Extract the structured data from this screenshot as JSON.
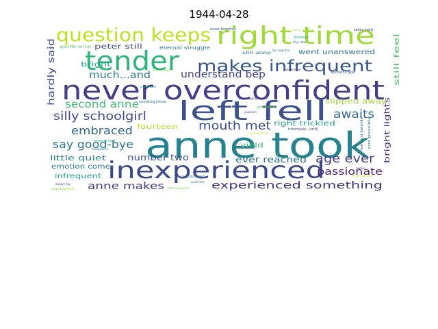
{
  "chart_data": {
    "type": "wordcloud",
    "title": "1944-04-28",
    "words": [
      {
        "text": "anne took",
        "color": "#26828e"
      },
      {
        "text": "never overconfident",
        "color": "#433e85"
      },
      {
        "text": "inexperienced",
        "color": "#3e4989"
      },
      {
        "text": "right time",
        "color": "#a0da39"
      },
      {
        "text": "left fell",
        "color": "#3b528b"
      },
      {
        "text": "tender",
        "color": "#2fb47c"
      },
      {
        "text": "question keeps",
        "color": "#bddf26"
      },
      {
        "text": "makes infrequent",
        "color": "#38588c"
      },
      {
        "text": "silly schoolgirl",
        "color": "#3e4a89"
      },
      {
        "text": "mouth met",
        "color": "#3d4d8a"
      },
      {
        "text": "age ever",
        "color": "#433e85"
      },
      {
        "text": "understand bep",
        "color": "#414487"
      },
      {
        "text": "much...and",
        "color": "#2a788e"
      },
      {
        "text": "awaits",
        "color": "#31688e"
      },
      {
        "text": "say good-bye",
        "color": "#2a778e"
      },
      {
        "text": "embraced",
        "color": "#31688e"
      },
      {
        "text": "experienced something",
        "color": "#46337f"
      },
      {
        "text": "anne makes",
        "color": "#453781"
      },
      {
        "text": "second anne",
        "color": "#40bd72"
      },
      {
        "text": "passionate",
        "color": "#482576"
      },
      {
        "text": "ever reached",
        "color": "#2c718e"
      },
      {
        "text": "hardly said",
        "color": "#3e4a89"
      },
      {
        "text": "bright lights",
        "color": "#472c7a"
      },
      {
        "text": "still feel",
        "color": "#52c569"
      },
      {
        "text": "slipped away",
        "color": "#a2da37"
      },
      {
        "text": "went unanswered",
        "color": "#2a788e"
      },
      {
        "text": "number two",
        "color": "#3b528b"
      },
      {
        "text": "fourteen",
        "color": "#b5de2b"
      },
      {
        "text": "little quiet",
        "color": "#277f8e"
      },
      {
        "text": "infrequent",
        "color": "#1fa088"
      },
      {
        "text": "emotion come",
        "color": "#287c8e"
      },
      {
        "text": "right trickled",
        "color": "#20a386"
      },
      {
        "text": "yield",
        "color": "#3dbc74"
      },
      {
        "text": "bright",
        "color": "#22a884"
      },
      {
        "text": "peter still",
        "color": "#3e4a89"
      },
      {
        "text": "eternal struggle",
        "color": "#2c718e"
      },
      {
        "text": "still anne",
        "color": "#2a788e"
      },
      {
        "text": "gentle anne",
        "color": "#5ec962"
      },
      {
        "text": "never forgotten",
        "color": "#3b528b"
      },
      {
        "text": "every rubbed",
        "color": "#a0da39"
      },
      {
        "text": "taken hold",
        "color": "#3e4a89"
      },
      {
        "text": "discover",
        "color": "#1f9e89"
      },
      {
        "text": "boys later",
        "color": "#31688e"
      },
      {
        "text": "lips together",
        "color": "#26828e"
      },
      {
        "text": "possible answer",
        "color": "#481a6c"
      },
      {
        "text": "wonderful glow",
        "color": "#39568c"
      },
      {
        "text": "feel strange",
        "color": "#7ad151"
      },
      {
        "text": "superseded",
        "color": "#1f9e89"
      },
      {
        "text": "something almost",
        "color": "#2c718e"
      },
      {
        "text": "keeps nagging",
        "color": "#443a83"
      },
      {
        "text": "got pressed",
        "color": "#6ccd5a"
      },
      {
        "text": "intensely...until",
        "color": "#3f4788"
      },
      {
        "text": "landed beside",
        "color": "#31688e"
      },
      {
        "text": "one possible",
        "color": "#2a788e"
      },
      {
        "text": "everyone need",
        "color": "#27ad81"
      },
      {
        "text": "millpower",
        "color": "#2c728e"
      },
      {
        "text": "always say",
        "color": "#3b528b"
      },
      {
        "text": "found comfort",
        "color": "#8fd744"
      },
      {
        "text": "quiet time",
        "color": "#2a788e"
      },
      {
        "text": "questions went",
        "color": "#2c718e"
      },
      {
        "text": "little millpower",
        "color": "#7ad151"
      },
      {
        "text": "much passion",
        "color": "#d2e21b"
      },
      {
        "text": "aware",
        "color": "#482173"
      },
      {
        "text": "passion",
        "color": "#3e4a89"
      },
      {
        "text": "cheek working",
        "color": "#c2df23"
      }
    ]
  }
}
